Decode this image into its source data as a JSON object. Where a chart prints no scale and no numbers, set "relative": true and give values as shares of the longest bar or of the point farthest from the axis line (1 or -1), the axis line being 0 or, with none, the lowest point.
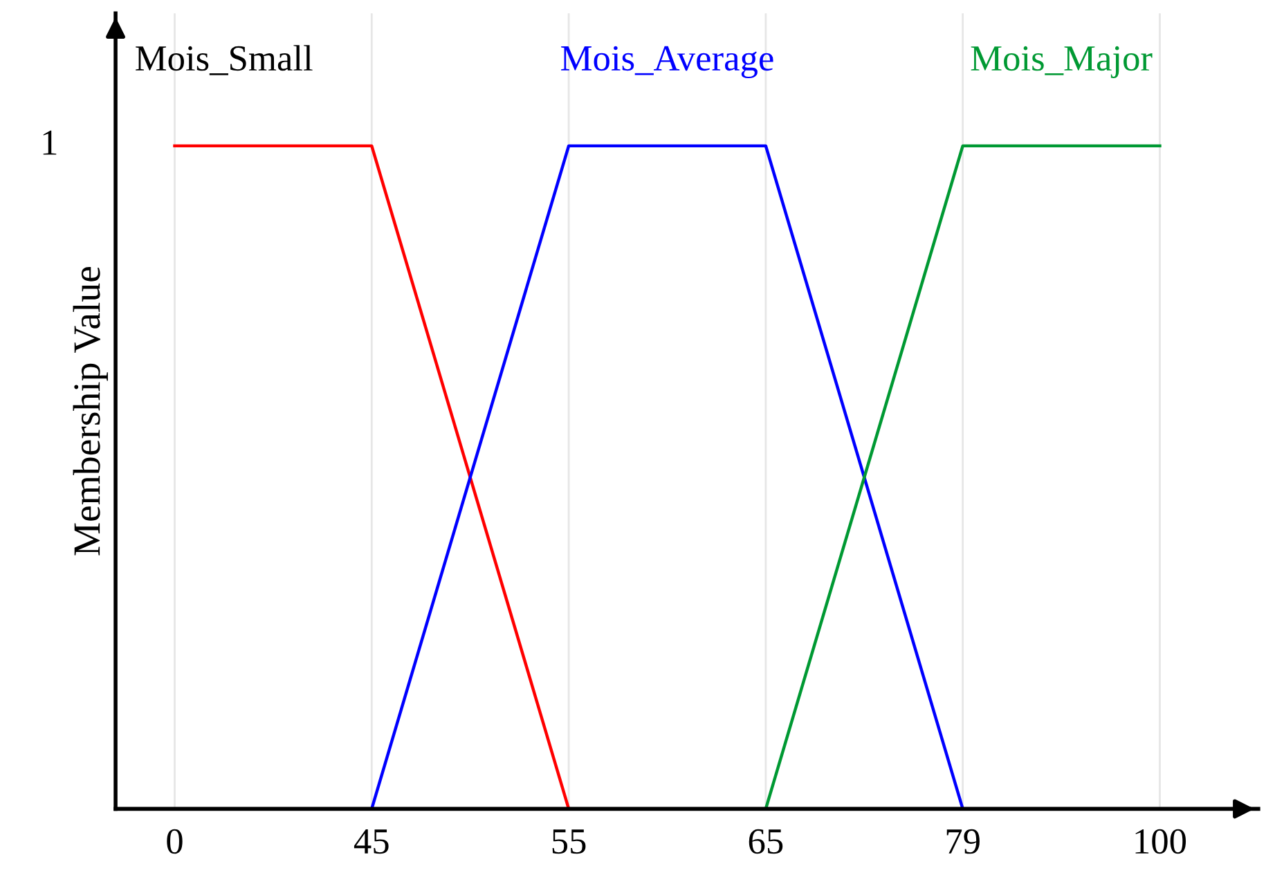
{
  "chart_data": {
    "type": "line",
    "ylabel": "Membership Value",
    "categories": [
      "0",
      "45",
      "55",
      "65",
      "79",
      "100"
    ],
    "series": [
      {
        "name": "Mois_Small",
        "color": "#ff0000",
        "values": [
          1,
          1,
          0,
          null,
          null,
          null
        ]
      },
      {
        "name": "Mois_Average",
        "color": "#0000ff",
        "values": [
          null,
          0,
          1,
          1,
          0,
          null
        ]
      },
      {
        "name": "Mois_Major",
        "color": "#009933",
        "values": [
          null,
          null,
          null,
          0,
          1,
          1
        ]
      }
    ],
    "relative": true,
    "annotations": [
      "1"
    ],
    "grid": "x",
    "legend": false,
    "marker": "none",
    "line_style": "solid"
  }
}
